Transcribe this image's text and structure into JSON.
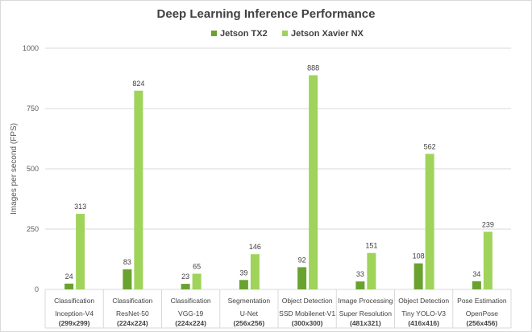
{
  "chart_data": {
    "type": "bar",
    "title": "Deep Learning Inference Performance",
    "ylabel": "Images per second (FPS)",
    "xlabel": "",
    "ylim": [
      0,
      1000
    ],
    "yticks": [
      0,
      250,
      500,
      750,
      1000
    ],
    "grid": true,
    "legend_position": "top",
    "categories": [
      {
        "task": "Classification",
        "model": "Inception-V4",
        "res": "(299x299)"
      },
      {
        "task": "Classification",
        "model": "ResNet-50",
        "res": "(224x224)"
      },
      {
        "task": "Classification",
        "model": "VGG-19",
        "res": "(224x224)"
      },
      {
        "task": "Segmentation",
        "model": "U-Net",
        "res": "(256x256)"
      },
      {
        "task": "Object Detection",
        "model": "SSD Mobilenet-V1",
        "res": "(300x300)"
      },
      {
        "task": "Image Processing",
        "model": "Super Resolution",
        "res": "(481x321)"
      },
      {
        "task": "Object Detection",
        "model": "Tiny YOLO-V3",
        "res": "(416x416)"
      },
      {
        "task": "Pose Estimation",
        "model": "OpenPose",
        "res": "(256x456)"
      }
    ],
    "series": [
      {
        "name": "Jetson TX2",
        "color": "#6aa230",
        "values": [
          24,
          83,
          23,
          39,
          92,
          33,
          108,
          34
        ]
      },
      {
        "name": "Jetson Xavier NX",
        "color": "#9fd35a",
        "values": [
          313,
          824,
          65,
          146,
          888,
          151,
          562,
          239
        ]
      }
    ]
  }
}
